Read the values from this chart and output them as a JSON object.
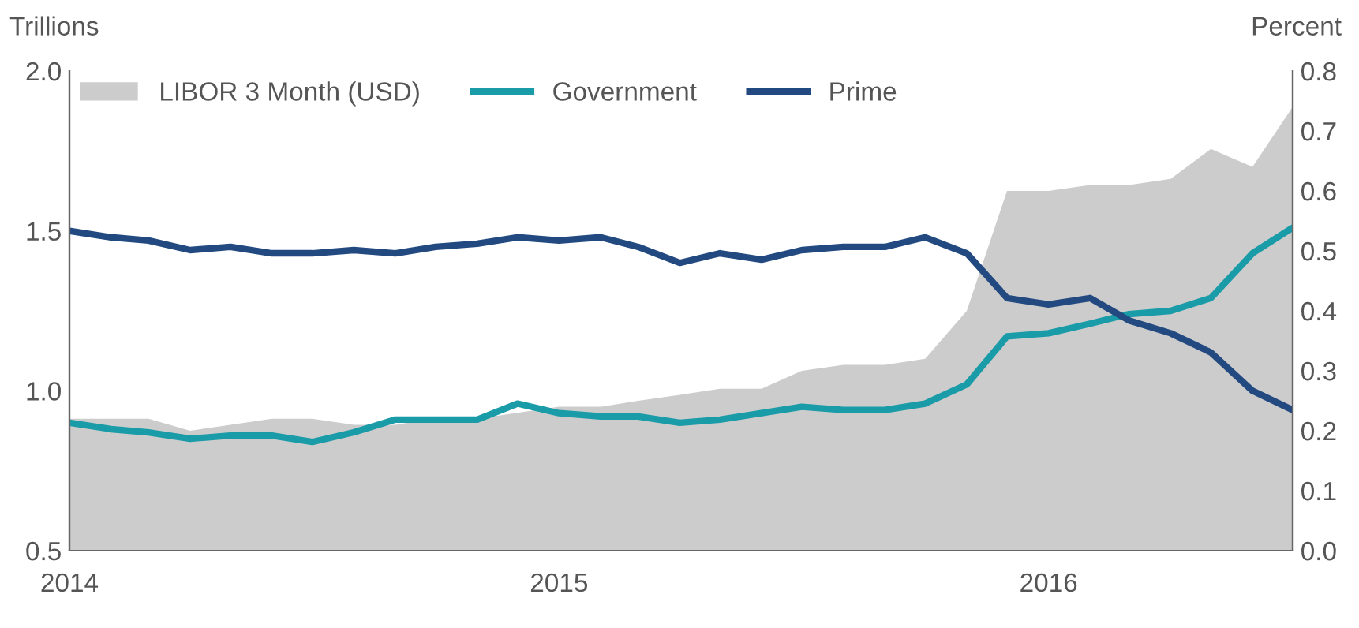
{
  "chart_data": {
    "type": "line",
    "ylabel": "Trillions",
    "y2label": "Percent",
    "x": [
      "2014-01",
      "2014-02",
      "2014-03",
      "2014-04",
      "2014-05",
      "2014-06",
      "2014-07",
      "2014-08",
      "2014-09",
      "2014-10",
      "2014-11",
      "2014-12",
      "2015-01",
      "2015-02",
      "2015-03",
      "2015-04",
      "2015-05",
      "2015-06",
      "2015-07",
      "2015-08",
      "2015-09",
      "2015-10",
      "2015-11",
      "2015-12",
      "2016-01",
      "2016-02",
      "2016-03",
      "2016-04",
      "2016-05",
      "2016-06",
      "2016-07"
    ],
    "series": [
      {
        "name": "LIBOR 3 Month (USD)",
        "type": "area",
        "axis": "y2",
        "color": "#cccccc",
        "values": [
          0.22,
          0.22,
          0.22,
          0.2,
          0.21,
          0.22,
          0.22,
          0.21,
          0.21,
          0.22,
          0.22,
          0.23,
          0.24,
          0.24,
          0.25,
          0.26,
          0.27,
          0.27,
          0.3,
          0.31,
          0.31,
          0.32,
          0.4,
          0.6,
          0.6,
          0.61,
          0.61,
          0.62,
          0.67,
          0.64,
          0.74
        ]
      },
      {
        "name": "Government",
        "color": "#1a9ba8",
        "values": [
          0.9,
          0.88,
          0.87,
          0.85,
          0.86,
          0.86,
          0.84,
          0.87,
          0.91,
          0.91,
          0.91,
          0.96,
          0.93,
          0.92,
          0.92,
          0.9,
          0.91,
          0.93,
          0.95,
          0.94,
          0.94,
          0.96,
          1.02,
          1.17,
          1.18,
          1.21,
          1.24,
          1.25,
          1.29,
          1.43,
          1.51
        ]
      },
      {
        "name": "Prime",
        "color": "#234a80",
        "values": [
          1.5,
          1.48,
          1.47,
          1.44,
          1.45,
          1.43,
          1.43,
          1.44,
          1.43,
          1.45,
          1.46,
          1.48,
          1.47,
          1.48,
          1.45,
          1.4,
          1.43,
          1.41,
          1.44,
          1.45,
          1.45,
          1.48,
          1.43,
          1.29,
          1.27,
          1.29,
          1.22,
          1.18,
          1.12,
          1.0,
          0.94
        ]
      }
    ],
    "xlim": [
      "2014-01",
      "2016-07"
    ],
    "xticks": [
      {
        "value": "2014",
        "label": "2014"
      },
      {
        "value": "2015",
        "label": "2015"
      },
      {
        "value": "2016",
        "label": "2016"
      }
    ],
    "ylim": [
      0.5,
      2.0
    ],
    "yticks": [
      {
        "value": 0.5,
        "label": "0.5"
      },
      {
        "value": 1.0,
        "label": "1.0"
      },
      {
        "value": 1.5,
        "label": "1.5"
      },
      {
        "value": 2.0,
        "label": "2.0"
      }
    ],
    "y2lim": [
      0.0,
      0.8
    ],
    "y2ticks": [
      {
        "value": 0.0,
        "label": "0.0"
      },
      {
        "value": 0.1,
        "label": "0.1"
      },
      {
        "value": 0.2,
        "label": "0.2"
      },
      {
        "value": 0.3,
        "label": "0.3"
      },
      {
        "value": 0.4,
        "label": "0.4"
      },
      {
        "value": 0.5,
        "label": "0.5"
      },
      {
        "value": 0.6,
        "label": "0.6"
      },
      {
        "value": 0.7,
        "label": "0.7"
      },
      {
        "value": 0.8,
        "label": "0.8"
      }
    ],
    "grid": false,
    "legend": "top left",
    "line_style": "solid",
    "marker": "none"
  }
}
